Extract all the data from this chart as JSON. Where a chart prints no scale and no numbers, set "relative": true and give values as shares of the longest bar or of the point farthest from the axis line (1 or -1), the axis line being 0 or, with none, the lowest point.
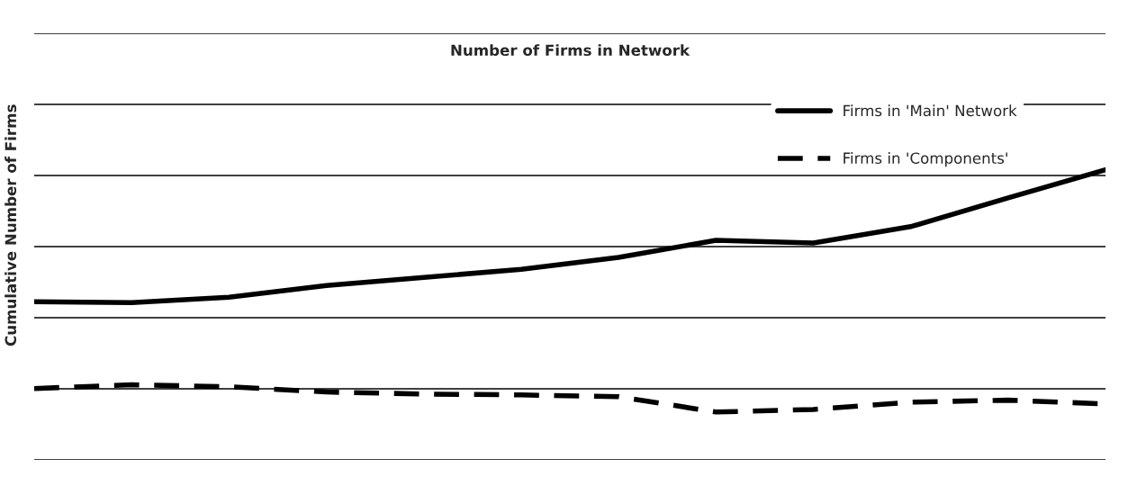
{
  "chart_data": {
    "type": "line",
    "title": "Number of Firms in Network",
    "ylabel": "Cumulative Number of Firms",
    "relative": true,
    "categories": [
      null,
      null,
      null,
      null,
      null,
      null,
      null,
      null,
      null,
      null,
      null,
      null
    ],
    "series": [
      {
        "name": "Firms in 'Main' Network",
        "color": "#000000",
        "line_style": "solid",
        "values": [
          0.545,
          0.542,
          0.561,
          0.601,
          0.629,
          0.657,
          0.698,
          0.757,
          0.748,
          0.804,
          0.903,
          1.0
        ]
      },
      {
        "name": "Firms in 'Components'",
        "color": "#000000",
        "line_style": "dashed",
        "values": [
          0.246,
          0.259,
          0.252,
          0.234,
          0.227,
          0.224,
          0.218,
          0.165,
          0.174,
          0.199,
          0.206,
          0.193
        ]
      }
    ],
    "grid": "y",
    "legend": "right"
  }
}
